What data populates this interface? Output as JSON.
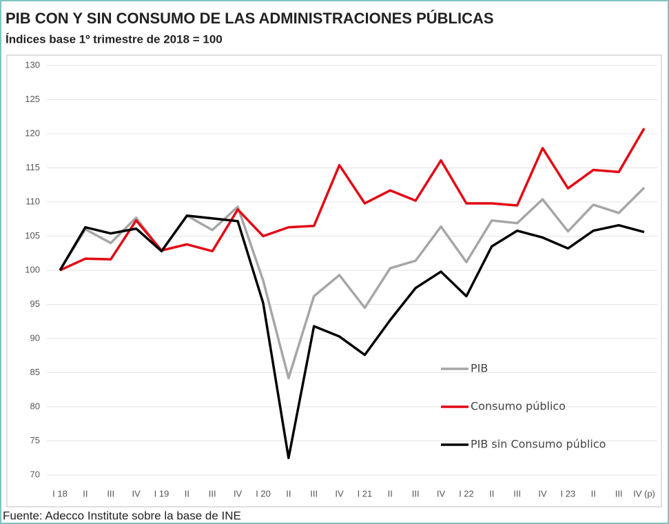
{
  "chart_data": {
    "type": "line",
    "title": "PIB CON Y SIN CONSUMO DE LAS ADMINISTRACIONES PÚBLICAS",
    "subtitle": "Índices base 1º trimestre de 2018 = 100",
    "source": "Fuente: Adecco Institute sobre la base de INE",
    "categories": [
      "I 18",
      "II",
      "III",
      "IV",
      "I 19",
      "II",
      "III",
      "IV",
      "I 20",
      "II",
      "III",
      "IV",
      "I 21",
      "II",
      "III",
      "IV",
      "I 22",
      "II",
      "III",
      "IV",
      "I 23",
      "II",
      "III",
      "IV (p)"
    ],
    "ylim": [
      70,
      130
    ],
    "yticks": [
      70,
      75,
      80,
      85,
      90,
      95,
      100,
      105,
      110,
      115,
      120,
      125,
      130
    ],
    "grid": true,
    "series": [
      {
        "name": "PIB",
        "color": "#a6a6a6",
        "values": [
          100,
          106,
          104,
          107.7,
          102.8,
          108,
          105.9,
          109.3,
          98.5,
          84.2,
          96.2,
          99.3,
          94.5,
          100.3,
          101.4,
          106.4,
          101.2,
          107.3,
          106.9,
          110.4,
          105.7,
          109.6,
          108.4,
          112.1
        ]
      },
      {
        "name": "Consumo público",
        "color": "#e30613",
        "values": [
          100,
          101.7,
          101.6,
          107.3,
          102.9,
          103.8,
          102.8,
          108.9,
          105,
          106.3,
          106.5,
          115.4,
          109.8,
          111.7,
          110.2,
          116.1,
          109.8,
          109.8,
          109.5,
          117.9,
          112,
          114.7,
          114.4,
          120.8
        ]
      },
      {
        "name": "PIB sin Consumo público",
        "color": "#000000",
        "values": [
          100,
          106.3,
          105.4,
          106.1,
          102.8,
          108,
          107.6,
          107.2,
          95.2,
          72.5,
          91.8,
          90.3,
          87.6,
          92.7,
          97.4,
          99.8,
          96.2,
          103.5,
          105.8,
          104.8,
          103.2,
          105.8,
          106.6,
          105.6
        ]
      }
    ]
  }
}
